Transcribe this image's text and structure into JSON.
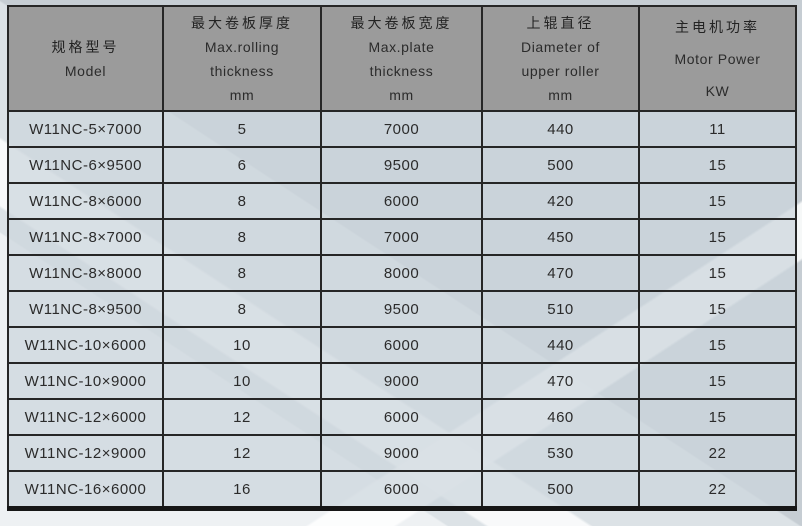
{
  "table": {
    "columns": [
      {
        "zh": "规格型号",
        "en1": "Model"
      },
      {
        "zh": "最大卷板厚度",
        "en1": "Max.rolling",
        "en2": "thickness",
        "unit": "mm"
      },
      {
        "zh": "最大卷板宽度",
        "en1": "Max.plate",
        "en2": "thickness",
        "unit": "mm"
      },
      {
        "zh": "上辊直径",
        "en1": "Diameter of",
        "en2": "upper roller",
        "unit": "mm"
      },
      {
        "zh": "主电机功率",
        "en1": "Motor Power",
        "unit": "KW"
      }
    ],
    "rows": [
      {
        "model": "W11NC-5×7000",
        "max_rolling_thickness": "5",
        "max_plate_width": "7000",
        "upper_roller_diameter": "440",
        "motor_power": "11"
      },
      {
        "model": "W11NC-6×9500",
        "max_rolling_thickness": "6",
        "max_plate_width": "9500",
        "upper_roller_diameter": "500",
        "motor_power": "15"
      },
      {
        "model": "W11NC-8×6000",
        "max_rolling_thickness": "8",
        "max_plate_width": "6000",
        "upper_roller_diameter": "420",
        "motor_power": "15"
      },
      {
        "model": "W11NC-8×7000",
        "max_rolling_thickness": "8",
        "max_plate_width": "7000",
        "upper_roller_diameter": "450",
        "motor_power": "15"
      },
      {
        "model": "W11NC-8×8000",
        "max_rolling_thickness": "8",
        "max_plate_width": "8000",
        "upper_roller_diameter": "470",
        "motor_power": "15"
      },
      {
        "model": "W11NC-8×9500",
        "max_rolling_thickness": "8",
        "max_plate_width": "9500",
        "upper_roller_diameter": "510",
        "motor_power": "15"
      },
      {
        "model": "W11NC-10×6000",
        "max_rolling_thickness": "10",
        "max_plate_width": "6000",
        "upper_roller_diameter": "440",
        "motor_power": "15"
      },
      {
        "model": "W11NC-10×9000",
        "max_rolling_thickness": "10",
        "max_plate_width": "9000",
        "upper_roller_diameter": "470",
        "motor_power": "15"
      },
      {
        "model": "W11NC-12×6000",
        "max_rolling_thickness": "12",
        "max_plate_width": "6000",
        "upper_roller_diameter": "460",
        "motor_power": "15"
      },
      {
        "model": "W11NC-12×9000",
        "max_rolling_thickness": "12",
        "max_plate_width": "9000",
        "upper_roller_diameter": "530",
        "motor_power": "22"
      },
      {
        "model": "W11NC-16×6000",
        "max_rolling_thickness": "16",
        "max_plate_width": "6000",
        "upper_roller_diameter": "500",
        "motor_power": "22"
      }
    ]
  },
  "colors": {
    "page_bg": "#c6cdd3",
    "header_bg": "#9b9b9b",
    "cell_bg": "#ccd6dd",
    "border": "#262626",
    "text": "#2b2b2b",
    "stripe_light": "#dee4e8",
    "stripe_white": "#ffffff"
  }
}
